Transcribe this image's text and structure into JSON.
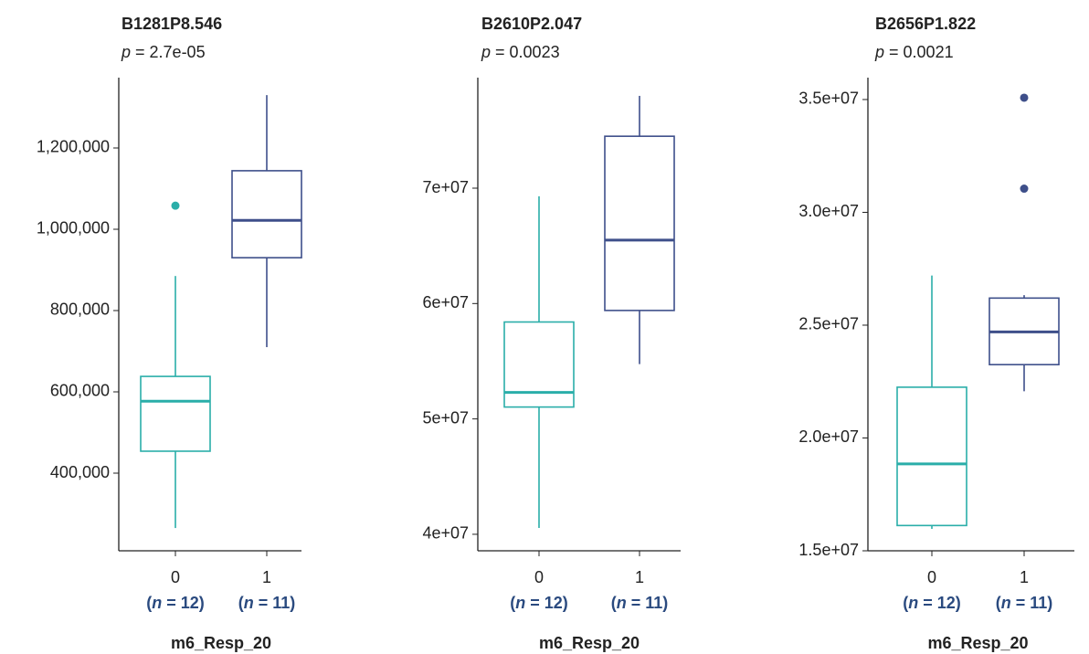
{
  "chart_data": [
    {
      "type": "box",
      "title": "B1281P8.546",
      "subtitle": "p = 2.7e-05",
      "categories": [
        "0",
        "1"
      ],
      "n_labels": [
        "(n = 12)",
        "(n = 11)"
      ],
      "xlabel": "m6_Resp_20",
      "ylim": [
        209000,
        1373000
      ],
      "yticks": [
        {
          "value": 400000,
          "label": "400,000"
        },
        {
          "value": 600000,
          "label": "600,000"
        },
        {
          "value": 800000,
          "label": "800,000"
        },
        {
          "value": 1000000,
          "label": "1,000,000"
        },
        {
          "value": 1200000,
          "label": "1,200,000"
        }
      ],
      "boxes": [
        {
          "color": "#2aaea9",
          "whislo": 265000,
          "q1": 454000,
          "med": 577000,
          "q3": 638000,
          "whishi": 885000,
          "fliers": [
            1058000
          ]
        },
        {
          "color": "#3e4f8a",
          "whislo": 710000,
          "q1": 930000,
          "med": 1022000,
          "q3": 1144000,
          "whishi": 1330000,
          "fliers": []
        }
      ]
    },
    {
      "type": "box",
      "title": "B2610P2.047",
      "subtitle": "p = 0.0023",
      "categories": [
        "0",
        "1"
      ],
      "n_labels": [
        "(n = 12)",
        "(n = 11)"
      ],
      "xlabel": "m6_Resp_20",
      "ylim": [
        38570000,
        79580000
      ],
      "yticks": [
        {
          "value": 40000000,
          "label": "4e+07"
        },
        {
          "value": 50000000,
          "label": "5e+07"
        },
        {
          "value": 60000000,
          "label": "6e+07"
        },
        {
          "value": 70000000,
          "label": "7e+07"
        }
      ],
      "boxes": [
        {
          "color": "#2aaea9",
          "whislo": 40550000,
          "q1": 51030000,
          "med": 52300000,
          "q3": 58400000,
          "whishi": 69300000,
          "fliers": []
        },
        {
          "color": "#3e4f8a",
          "whislo": 54750000,
          "q1": 59400000,
          "med": 65500000,
          "q3": 74500000,
          "whishi": 78000000,
          "fliers": []
        }
      ]
    },
    {
      "type": "box",
      "title": "B2656P1.822",
      "subtitle": "p = 0.0021",
      "categories": [
        "0",
        "1"
      ],
      "n_labels": [
        "(n = 12)",
        "(n = 11)"
      ],
      "xlabel": "m6_Resp_20",
      "ylim": [
        15000000,
        35970000
      ],
      "yticks": [
        {
          "value": 15000000,
          "label": "1.5e+07"
        },
        {
          "value": 20000000,
          "label": "2.0e+07"
        },
        {
          "value": 25000000,
          "label": "2.5e+07"
        },
        {
          "value": 30000000,
          "label": "3.0e+07"
        },
        {
          "value": 35000000,
          "label": "3.5e+07"
        }
      ],
      "boxes": [
        {
          "color": "#2aaea9",
          "whislo": 15970000,
          "q1": 16120000,
          "med": 18850000,
          "q3": 22250000,
          "whishi": 27200000,
          "fliers": []
        },
        {
          "color": "#3e4f8a",
          "whislo": 22070000,
          "q1": 23250000,
          "med": 24700000,
          "q3": 26200000,
          "whishi": 26330000,
          "fliers": [
            31050000,
            35080000
          ]
        }
      ]
    }
  ]
}
